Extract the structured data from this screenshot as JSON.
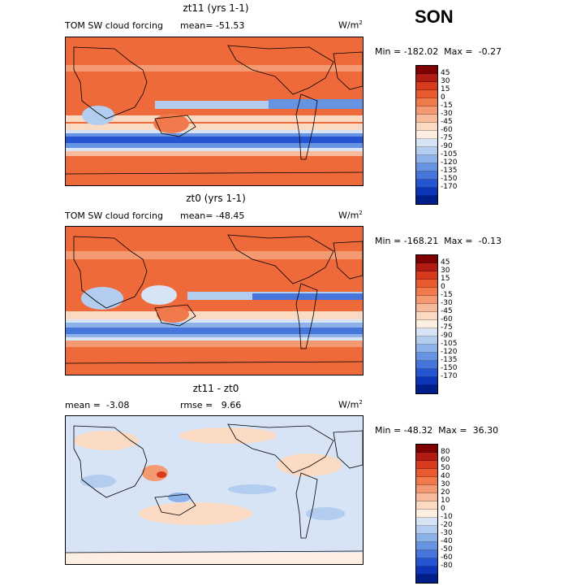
{
  "season": "SON",
  "panels": [
    {
      "title": "zt11 (yrs 1-1)",
      "left_label": "TOM SW cloud forcing",
      "mean_label": "mean= -51.53",
      "units": "W/m",
      "units_sup": "2",
      "minmax": "Min = -182.02  Max =  -0.27",
      "colorbar_labels": [
        "45",
        "30",
        "15",
        "0",
        "-15",
        "-30",
        "-45",
        "-60",
        "-75",
        "-90",
        "-105",
        "-120",
        "-135",
        "-150",
        "-170"
      ],
      "colorbar_colors": [
        "#7f0000",
        "#b11b12",
        "#d83a1e",
        "#ea5a30",
        "#f07a4c",
        "#f49a72",
        "#f7bb9c",
        "#fbdac4",
        "#fdf0e3",
        "#d6e4f5",
        "#b2cdef",
        "#8db2ea",
        "#6694e2",
        "#4675db",
        "#2456d4",
        "#0c35b8",
        "#001e8a"
      ]
    },
    {
      "title": "zt0 (yrs 1-1)",
      "left_label": "TOM SW cloud forcing",
      "mean_label": "mean= -48.45",
      "units": "W/m",
      "units_sup": "2",
      "minmax": "Min = -168.21  Max =  -0.13",
      "colorbar_labels": [
        "45",
        "30",
        "15",
        "0",
        "-15",
        "-30",
        "-45",
        "-60",
        "-75",
        "-90",
        "-105",
        "-120",
        "-135",
        "-150",
        "-170"
      ],
      "colorbar_colors": [
        "#7f0000",
        "#b11b12",
        "#d83a1e",
        "#ea5a30",
        "#f07a4c",
        "#f49a72",
        "#f7bb9c",
        "#fbdac4",
        "#fdf0e3",
        "#d6e4f5",
        "#b2cdef",
        "#8db2ea",
        "#6694e2",
        "#4675db",
        "#2456d4",
        "#0c35b8",
        "#001e8a"
      ]
    },
    {
      "title": "zt11 - zt0",
      "mean_label": "mean =  -3.08",
      "rmse_label": "rmse =   9.66",
      "units": "W/m",
      "units_sup": "2",
      "minmax": "Min = -48.32  Max =  36.30",
      "colorbar_labels": [
        "80",
        "60",
        "50",
        "40",
        "30",
        "20",
        "10",
        "0",
        "-10",
        "-20",
        "-30",
        "-40",
        "-50",
        "-60",
        "-80"
      ],
      "colorbar_colors": [
        "#7f0000",
        "#b11b12",
        "#d83a1e",
        "#ea5a30",
        "#f07a4c",
        "#f49a72",
        "#f7bb9c",
        "#fbdac4",
        "#fdf0e3",
        "#d6e4f5",
        "#b2cdef",
        "#8db2ea",
        "#6694e2",
        "#4675db",
        "#2456d4",
        "#0c35b8",
        "#001e8a"
      ]
    }
  ]
}
